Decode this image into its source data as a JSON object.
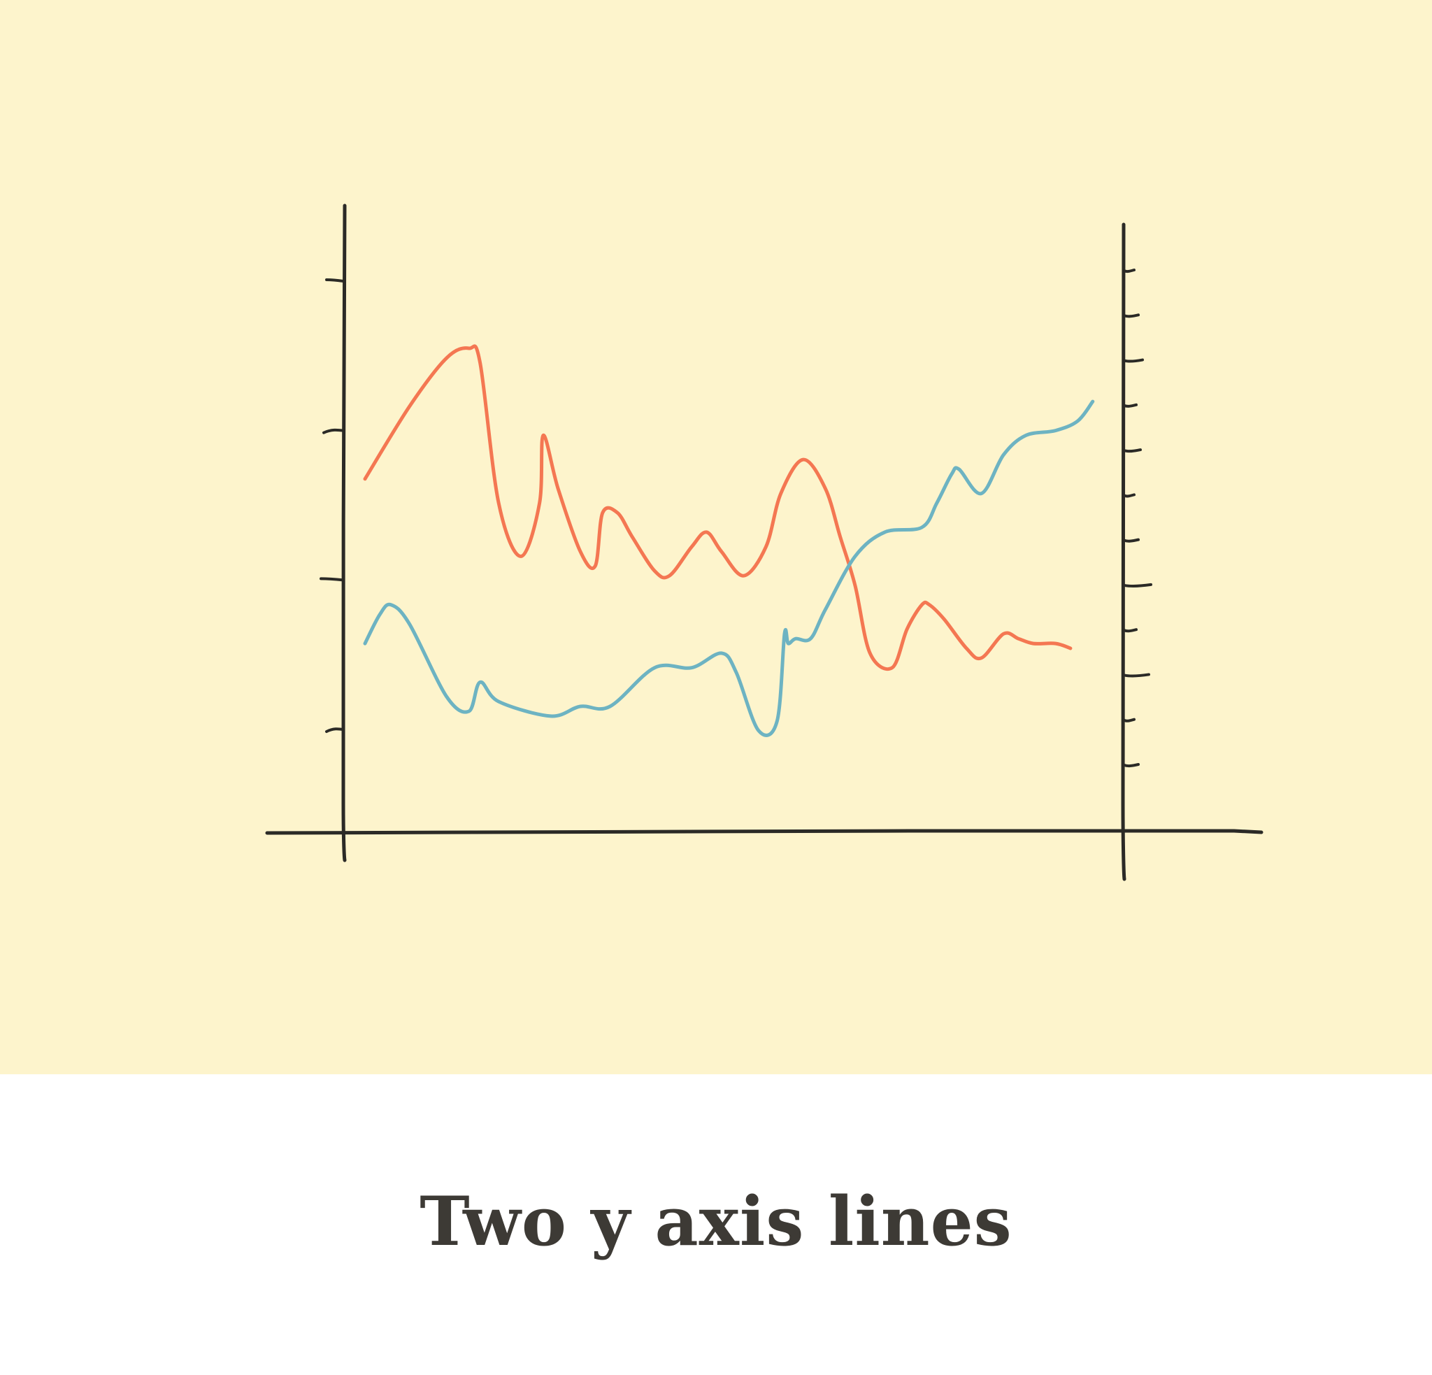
{
  "caption": {
    "title": "Two y axis lines"
  },
  "colors": {
    "background_panel": "#FDF4CC",
    "background_caption": "#ffffff",
    "axis_ink": "#2b2a26",
    "series_orange": "#F47752",
    "series_blue": "#6DB3C2",
    "title_text": "#3d3a35"
  },
  "chart_data": {
    "type": "line",
    "style": "hand-drawn",
    "title": "",
    "xlabel": "",
    "ylabel": "",
    "grid": false,
    "legend": "none",
    "left_axis": {
      "tick_count": 4,
      "tick_labels": [],
      "ylim": [
        0,
        1
      ]
    },
    "right_axis": {
      "tick_count": 12,
      "tick_labels": [],
      "ylim": [
        0,
        1
      ]
    },
    "xlim": [
      0,
      1
    ],
    "series": [
      {
        "color": "#F47752",
        "axis": "left",
        "x": [
          0.0,
          0.06,
          0.11,
          0.14,
          0.155,
          0.18,
          0.21,
          0.235,
          0.24,
          0.26,
          0.29,
          0.31,
          0.32,
          0.34,
          0.36,
          0.39,
          0.41,
          0.44,
          0.46,
          0.48,
          0.51,
          0.54,
          0.56,
          0.59,
          0.62,
          0.64,
          0.66,
          0.68,
          0.71,
          0.73,
          0.75,
          0.76,
          0.78,
          0.81,
          0.83,
          0.86,
          0.88,
          0.9,
          0.93,
          0.95
        ],
        "y": [
          0.6,
          0.75,
          0.85,
          0.87,
          0.84,
          0.55,
          0.44,
          0.55,
          0.69,
          0.58,
          0.45,
          0.42,
          0.53,
          0.53,
          0.48,
          0.41,
          0.4,
          0.46,
          0.49,
          0.45,
          0.4,
          0.46,
          0.57,
          0.64,
          0.58,
          0.48,
          0.38,
          0.24,
          0.21,
          0.29,
          0.34,
          0.34,
          0.31,
          0.25,
          0.23,
          0.28,
          0.27,
          0.26,
          0.26,
          0.25
        ]
      },
      {
        "color": "#6DB3C2",
        "axis": "right",
        "x": [
          0.0,
          0.02,
          0.035,
          0.06,
          0.11,
          0.14,
          0.155,
          0.18,
          0.25,
          0.29,
          0.33,
          0.39,
          0.44,
          0.48,
          0.5,
          0.53,
          0.555,
          0.565,
          0.57,
          0.58,
          0.6,
          0.62,
          0.66,
          0.7,
          0.75,
          0.77,
          0.79,
          0.8,
          0.83,
          0.86,
          0.89,
          0.93,
          0.96,
          0.98
        ],
        "y": [
          0.26,
          0.32,
          0.34,
          0.3,
          0.15,
          0.12,
          0.18,
          0.14,
          0.11,
          0.13,
          0.13,
          0.21,
          0.21,
          0.24,
          0.2,
          0.08,
          0.1,
          0.28,
          0.26,
          0.27,
          0.27,
          0.33,
          0.44,
          0.49,
          0.5,
          0.55,
          0.61,
          0.62,
          0.57,
          0.65,
          0.69,
          0.7,
          0.72,
          0.76
        ]
      }
    ]
  }
}
